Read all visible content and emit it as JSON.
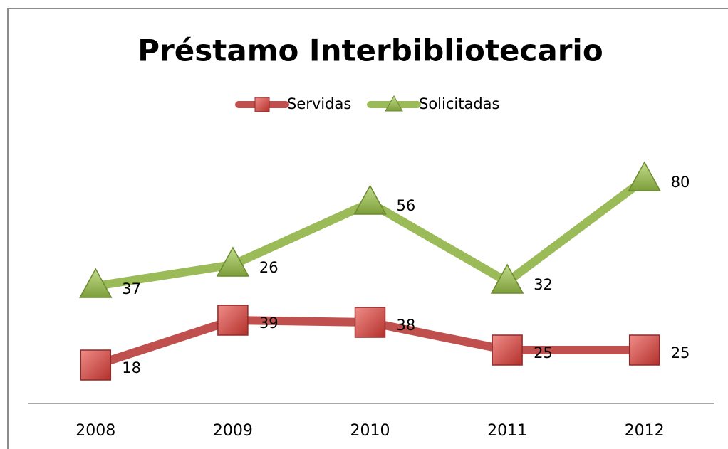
{
  "chart_data": {
    "type": "line",
    "stacked": true,
    "title": "Préstamo Interbibliotecario",
    "categories": [
      "2008",
      "2009",
      "2010",
      "2011",
      "2012"
    ],
    "series": [
      {
        "name": "Servidas",
        "color": "#c0504d",
        "marker": "square",
        "values": [
          18,
          39,
          38,
          25,
          25
        ]
      },
      {
        "name": "Solicitadas",
        "color": "#9bbb59",
        "marker": "triangle",
        "values": [
          37,
          26,
          56,
          32,
          80
        ]
      }
    ],
    "ylim": [
      0,
      120
    ],
    "legend": "top",
    "data_labels": true
  }
}
